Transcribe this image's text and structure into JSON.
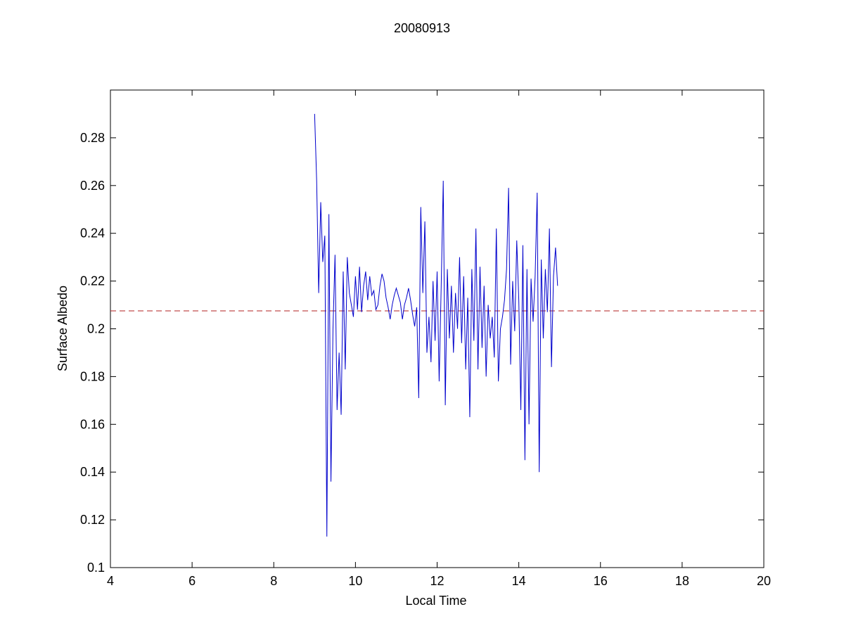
{
  "chart_data": {
    "type": "line",
    "title": "20080913",
    "xlabel": "Local Time",
    "ylabel": "Surface Albedo",
    "xlim": [
      4,
      20
    ],
    "xticks": [
      4,
      6,
      8,
      10,
      12,
      14,
      16,
      18,
      20
    ],
    "ylim": [
      0.1,
      0.3
    ],
    "yticks": [
      0.1,
      0.12,
      0.14,
      0.16,
      0.18,
      0.2,
      0.22,
      0.24,
      0.26,
      0.28
    ],
    "grid": false,
    "x": [
      9,
      9.05,
      9.1,
      9.15,
      9.2,
      9.25,
      9.3,
      9.35,
      9.4,
      9.45,
      9.5,
      9.55,
      9.6,
      9.65,
      9.7,
      9.75,
      9.8,
      9.85,
      9.9,
      9.95,
      10,
      10.05,
      10.1,
      10.15,
      10.2,
      10.25,
      10.3,
      10.35,
      10.4,
      10.45,
      10.5,
      10.55,
      10.6,
      10.65,
      10.7,
      10.75,
      10.8,
      10.85,
      10.9,
      10.95,
      11,
      11.05,
      11.1,
      11.15,
      11.2,
      11.25,
      11.3,
      11.35,
      11.4,
      11.45,
      11.5,
      11.55,
      11.6,
      11.65,
      11.7,
      11.75,
      11.8,
      11.85,
      11.9,
      11.95,
      12,
      12.05,
      12.1,
      12.15,
      12.2,
      12.25,
      12.3,
      12.35,
      12.4,
      12.45,
      12.5,
      12.55,
      12.6,
      12.65,
      12.7,
      12.75,
      12.8,
      12.85,
      12.9,
      12.95,
      13,
      13.05,
      13.1,
      13.15,
      13.2,
      13.25,
      13.3,
      13.35,
      13.4,
      13.45,
      13.5,
      13.55,
      13.6,
      13.65,
      13.7,
      13.75,
      13.8,
      13.85,
      13.9,
      13.95,
      14,
      14.05,
      14.1,
      14.15,
      14.2,
      14.25,
      14.3,
      14.35,
      14.4,
      14.45,
      14.5,
      14.55,
      14.6,
      14.65,
      14.7,
      14.75,
      14.8,
      14.85,
      14.9,
      14.95
    ],
    "series": [
      {
        "color": "#0000cc",
        "values": [
          0.29,
          0.262,
          0.215,
          0.253,
          0.228,
          0.239,
          0.113,
          0.248,
          0.136,
          0.2,
          0.231,
          0.166,
          0.19,
          0.164,
          0.224,
          0.183,
          0.23,
          0.215,
          0.21,
          0.205,
          0.222,
          0.208,
          0.226,
          0.207,
          0.218,
          0.224,
          0.212,
          0.222,
          0.214,
          0.216,
          0.208,
          0.21,
          0.218,
          0.223,
          0.22,
          0.213,
          0.209,
          0.204,
          0.21,
          0.214,
          0.217,
          0.214,
          0.211,
          0.204,
          0.21,
          0.213,
          0.217,
          0.212,
          0.206,
          0.201,
          0.209,
          0.171,
          0.251,
          0.215,
          0.245,
          0.19,
          0.205,
          0.186,
          0.22,
          0.195,
          0.224,
          0.178,
          0.218,
          0.262,
          0.168,
          0.225,
          0.196,
          0.218,
          0.19,
          0.215,
          0.2,
          0.23,
          0.194,
          0.222,
          0.183,
          0.213,
          0.163,
          0.225,
          0.195,
          0.242,
          0.183,
          0.226,
          0.192,
          0.218,
          0.18,
          0.21,
          0.196,
          0.205,
          0.188,
          0.242,
          0.178,
          0.2,
          0.205,
          0.212,
          0.225,
          0.259,
          0.185,
          0.22,
          0.199,
          0.237,
          0.212,
          0.166,
          0.235,
          0.145,
          0.225,
          0.16,
          0.221,
          0.203,
          0.222,
          0.257,
          0.14,
          0.229,
          0.196,
          0.225,
          0.207,
          0.242,
          0.184,
          0.222,
          0.234,
          0.218
        ]
      }
    ],
    "hlines": [
      {
        "value": 0.2075,
        "color": "#b22222",
        "dashed": true
      }
    ]
  }
}
